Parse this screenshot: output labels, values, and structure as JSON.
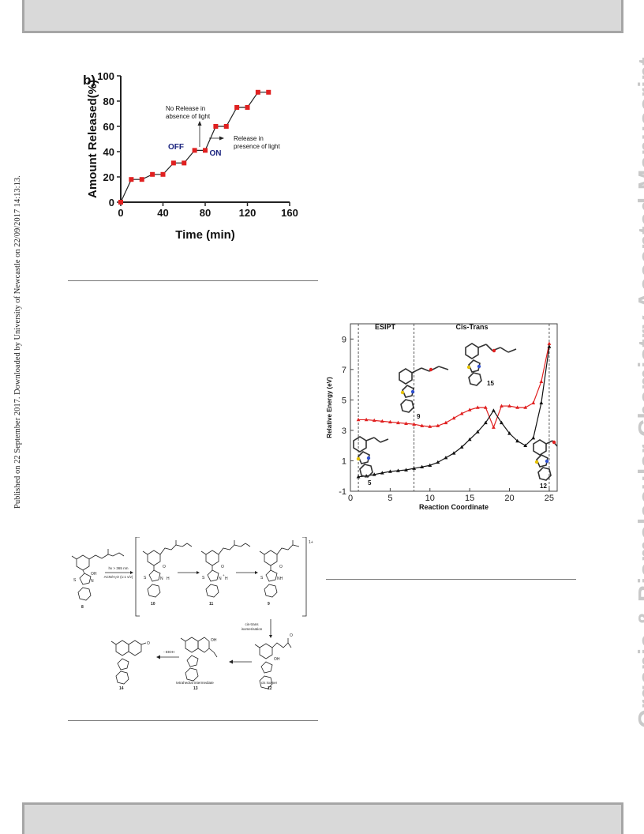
{
  "side_note": "Published on 22 September 2017. Downloaded by University of Newcastle on 22/09/2017 14:13:13.",
  "watermark": "Organic & Biomolecular Chemistry Accepted Manuscript",
  "colors": {
    "series_red": "#e02020",
    "series_black": "#111111",
    "label_blue": "#1a237e",
    "watermark": "#c9c9c9"
  },
  "chart_data": [
    {
      "type": "line",
      "panel_label": "b)",
      "title": "",
      "xlabel": "Time (min)",
      "ylabel": "Amount Released(%)",
      "xlim": [
        0,
        160
      ],
      "ylim": [
        0,
        100
      ],
      "xticks": [
        0,
        40,
        80,
        120,
        160
      ],
      "yticks": [
        0,
        20,
        40,
        60,
        80,
        100
      ],
      "series": [
        {
          "values": [
            [
              0,
              0
            ],
            [
              10,
              18
            ],
            [
              20,
              18
            ],
            [
              30,
              22
            ],
            [
              40,
              22
            ],
            [
              50,
              31
            ],
            [
              60,
              31
            ],
            [
              70,
              41
            ],
            [
              80,
              41
            ],
            [
              90,
              60
            ],
            [
              100,
              60
            ],
            [
              110,
              75
            ],
            [
              120,
              75
            ],
            [
              130,
              87
            ],
            [
              140,
              87
            ]
          ]
        }
      ],
      "annotations": {
        "off": "OFF",
        "on": "ON",
        "no_release_1": "No Release in",
        "no_release_2": "absence of light",
        "release_1": "Release in",
        "release_2": "presence of light"
      }
    },
    {
      "type": "line",
      "title": "",
      "xlabel": "Reaction Coordinate",
      "ylabel": "Relative Energy (eV)",
      "xlim": [
        0,
        26
      ],
      "ylim": [
        -1,
        10
      ],
      "xticks": [
        0,
        5,
        10,
        15,
        20,
        25
      ],
      "yticks": [
        -1,
        1,
        3,
        5,
        7,
        9
      ],
      "regions": {
        "esipt": "ESIPT",
        "cis_trans": "Cis-Trans"
      },
      "dividers": [
        1,
        8,
        25
      ],
      "structure_labels": {
        "s5": "5",
        "s9": "9",
        "s15": "15",
        "s12": "12"
      },
      "series": [
        {
          "values": [
            [
              1,
              3.7
            ],
            [
              2,
              3.7
            ],
            [
              3,
              3.65
            ],
            [
              4,
              3.6
            ],
            [
              5,
              3.55
            ],
            [
              6,
              3.5
            ],
            [
              7,
              3.45
            ],
            [
              8,
              3.4
            ],
            [
              9,
              3.3
            ],
            [
              10,
              3.25
            ],
            [
              11,
              3.3
            ],
            [
              12,
              3.5
            ],
            [
              13,
              3.8
            ],
            [
              14,
              4.1
            ],
            [
              15,
              4.35
            ],
            [
              16,
              4.5
            ],
            [
              17,
              4.5
            ],
            [
              18,
              3.2
            ],
            [
              19,
              4.6
            ],
            [
              20,
              4.6
            ],
            [
              21,
              4.5
            ],
            [
              22,
              4.5
            ],
            [
              23,
              4.8
            ],
            [
              24,
              6.2
            ],
            [
              25,
              8.7
            ]
          ]
        },
        {
          "values": [
            [
              1,
              -0.05
            ],
            [
              2,
              0.0
            ],
            [
              3,
              0.1
            ],
            [
              4,
              0.2
            ],
            [
              5,
              0.3
            ],
            [
              6,
              0.35
            ],
            [
              7,
              0.4
            ],
            [
              8,
              0.5
            ],
            [
              9,
              0.6
            ],
            [
              10,
              0.7
            ],
            [
              11,
              0.9
            ],
            [
              12,
              1.2
            ],
            [
              13,
              1.5
            ],
            [
              14,
              1.9
            ],
            [
              15,
              2.4
            ],
            [
              16,
              2.9
            ],
            [
              17,
              3.5
            ],
            [
              18,
              4.3
            ],
            [
              19,
              3.5
            ],
            [
              20,
              2.8
            ],
            [
              21,
              2.3
            ],
            [
              22,
              2.0
            ],
            [
              23,
              2.5
            ],
            [
              24,
              4.8
            ],
            [
              25,
              8.5
            ]
          ]
        }
      ]
    }
  ],
  "scheme": {
    "conditions_1": "hν > 365 nm",
    "conditions_2": "ACN/H₂O (1:1 v/v)",
    "charge": "1+",
    "step_2_1": "cis-trans",
    "step_2_2": "isomerisation",
    "step_4": "- EtOH",
    "labels": {
      "c8": "8",
      "c10": "10",
      "c11": "11",
      "c9": "9",
      "c12": "12",
      "c12_name": "cis isomer",
      "c13": "13",
      "c13_name": "tetrahedral intermediate",
      "c14": "14"
    },
    "atoms": {
      "S": "S",
      "N": "N",
      "H": "H",
      "O": "O",
      "OH": "OH",
      "NH": "NH",
      "plus": "+"
    }
  }
}
